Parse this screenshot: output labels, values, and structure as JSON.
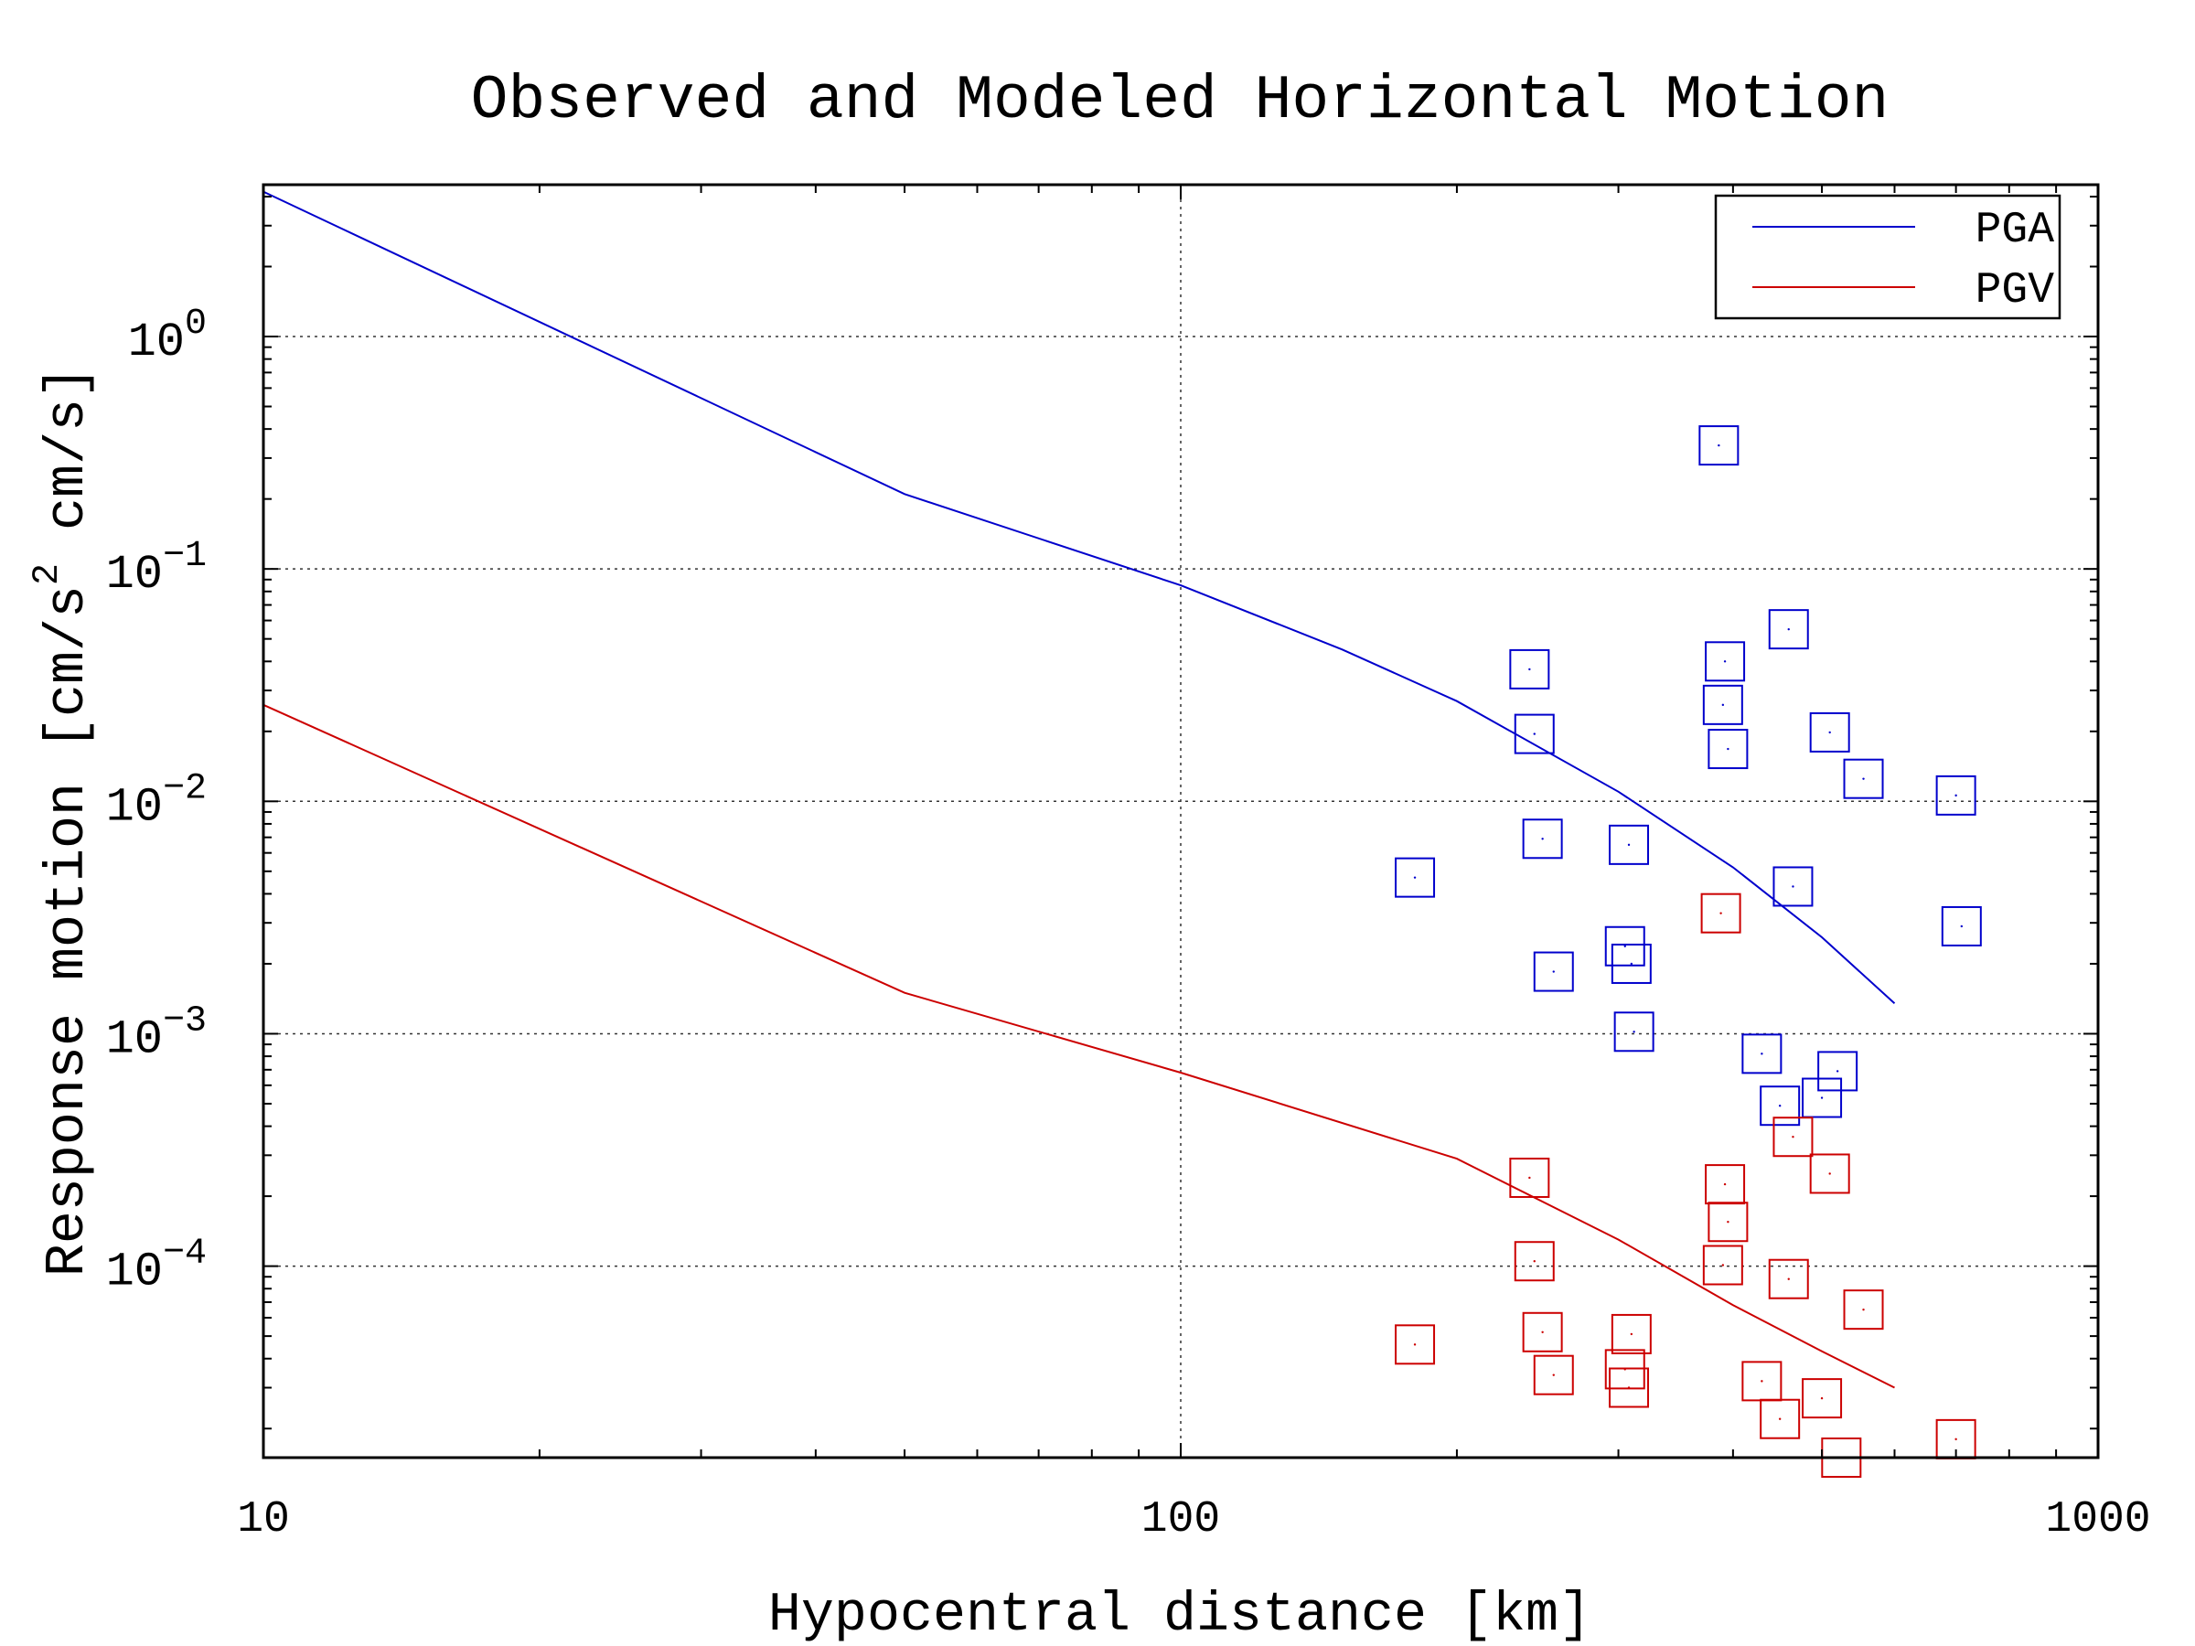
{
  "chart_data": {
    "type": "scatter",
    "title": "Observed and Modeled Horizontal Motion",
    "xlabel": "Hypocentral distance [km]",
    "ylabel_parts": [
      "Response motion  [cm/s",
      "2",
      "  cm/s]"
    ],
    "xscale": "log",
    "yscale": "log",
    "xlim": [
      10,
      1000
    ],
    "ylim": [
      1.5e-05,
      4.5
    ],
    "x_ticks": [
      {
        "value": 10,
        "label": "10"
      },
      {
        "value": 100,
        "label": "100"
      },
      {
        "value": 1000,
        "label": "1000"
      }
    ],
    "y_ticks": [
      {
        "value": 1,
        "base": "10",
        "exp": "0"
      },
      {
        "value": 0.1,
        "base": "10",
        "exp": "−1"
      },
      {
        "value": 0.01,
        "base": "10",
        "exp": "−2"
      },
      {
        "value": 0.001,
        "base": "10",
        "exp": "−3"
      },
      {
        "value": 0.0001,
        "base": "10",
        "exp": "−4"
      }
    ],
    "grid": true,
    "legend_position": "top-right",
    "series": [
      {
        "name": "PGA",
        "color": "#0000cc",
        "line": {
          "x": [
            10,
            50,
            100,
            150,
            200,
            300,
            400,
            500,
            600
          ],
          "y": [
            4.2,
            0.21,
            0.085,
            0.045,
            0.027,
            0.011,
            0.0052,
            0.0026,
            0.00135
          ]
        },
        "points": {
          "x": [
            180,
            240,
            243,
            248,
            255,
            305,
            308,
            310,
            312,
            386,
            390,
            392,
            395,
            460,
            465,
            510,
            555,
            700,
            710,
            430,
            450,
            500,
            520
          ],
          "y": [
            0.0047,
            0.037,
            0.0195,
            0.0069,
            0.00185,
            0.00238,
            0.0065,
            0.002,
            0.00102,
            0.34,
            0.026,
            0.04,
            0.0168,
            0.055,
            0.0043,
            0.0198,
            0.0125,
            0.0106,
            0.0029,
            0.00082,
            0.00049,
            0.00053,
            0.00069
          ]
        }
      },
      {
        "name": "PGV",
        "color": "#cc0000",
        "line": {
          "x": [
            10,
            50,
            100,
            200,
            300,
            400,
            500,
            600
          ],
          "y": [
            0.026,
            0.0015,
            0.00068,
            0.00029,
            0.00013,
            6.8e-05,
            4.3e-05,
            3e-05
          ]
        },
        "points": {
          "x": [
            180,
            240,
            243,
            248,
            255,
            305,
            308,
            310,
            388,
            390,
            392,
            395,
            430,
            450,
            460,
            465,
            500,
            510,
            525,
            555,
            700
          ],
          "y": [
            4.6e-05,
            0.00024,
            0.000105,
            5.2e-05,
            3.4e-05,
            3.6e-05,
            3e-05,
            5.1e-05,
            0.0033,
            0.000101,
            0.000225,
            0.000155,
            3.2e-05,
            2.2e-05,
            8.8e-05,
            0.00036,
            2.7e-05,
            0.00025,
            1.5e-05,
            6.5e-05,
            1.8e-05
          ]
        }
      }
    ]
  }
}
